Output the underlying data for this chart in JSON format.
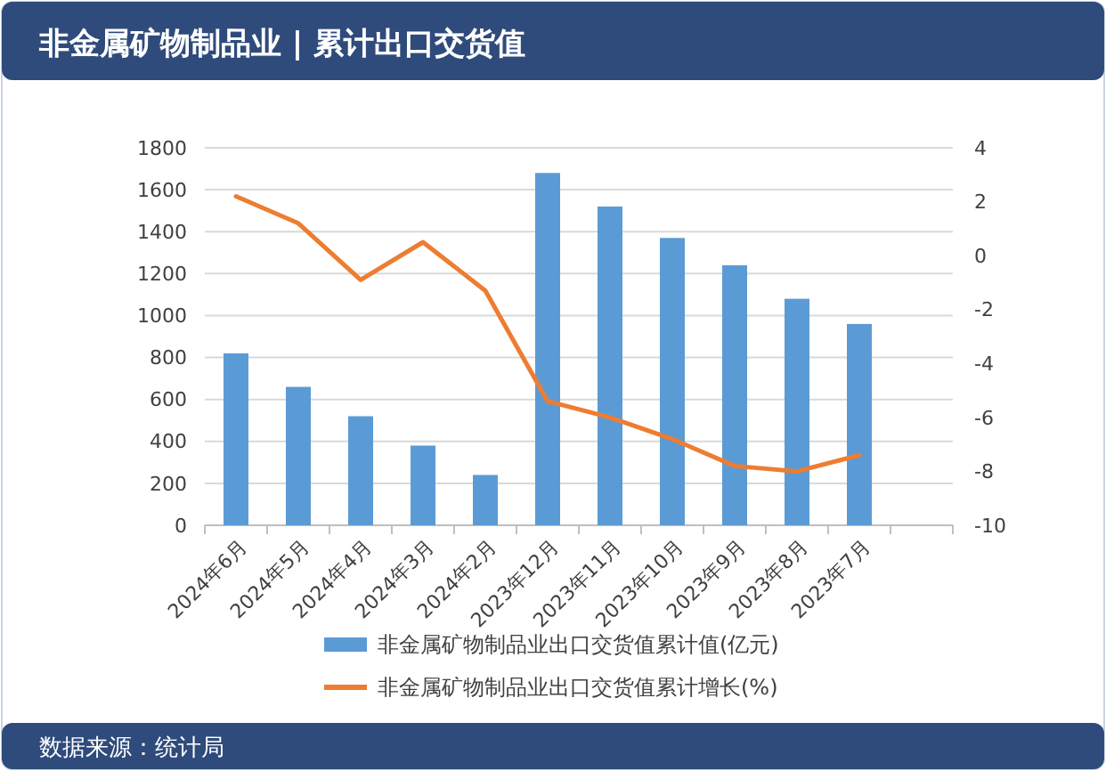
{
  "chart_data": {
    "type": "bar",
    "title": "非金属矿物制品业 | 累计出口交货值",
    "categories": [
      "2024年6月",
      "2024年5月",
      "2024年4月",
      "2024年3月",
      "2024年2月",
      "2023年12月",
      "2023年11月",
      "2023年10月",
      "2023年9月",
      "2023年8月",
      "2023年7月",
      null
    ],
    "series": [
      {
        "name": "非金属矿物制品业出口交货值累计值(亿元)",
        "color": "#5b9bd5",
        "values": [
          820,
          660,
          520,
          380,
          240,
          1680,
          1520,
          1370,
          1240,
          1080,
          960,
          null
        ]
      },
      {
        "name": "非金属矿物制品业出口交货值累计增长(%)",
        "type": "line",
        "axis": "y2",
        "color": "#ed7d31",
        "values": [
          2.2,
          1.2,
          -0.9,
          0.5,
          -1.3,
          -5.4,
          -6.0,
          -6.8,
          -7.8,
          -8.0,
          -7.4,
          null
        ]
      }
    ],
    "ylim": [
      0,
      1800
    ],
    "yticks": [
      0,
      200,
      400,
      600,
      800,
      1000,
      1200,
      1400,
      1600,
      1800
    ],
    "y2lim": [
      -10,
      4
    ],
    "y2ticks": [
      -10,
      -8,
      -6,
      -4,
      -2,
      0,
      2,
      4
    ],
    "grid": "y",
    "legend": "bottom",
    "marker": "none",
    "line_style": "solid",
    "annotations": [
      "数据来源：统计局"
    ]
  }
}
